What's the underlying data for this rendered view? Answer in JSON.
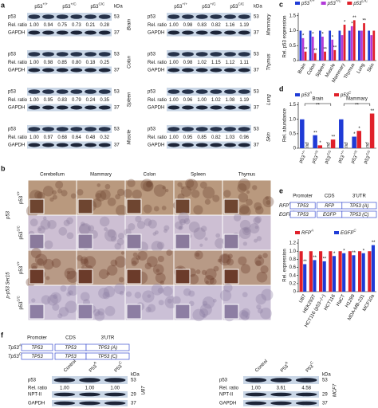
{
  "panel_labels": [
    "a",
    "b",
    "c",
    "d",
    "e",
    "f"
  ],
  "blots_a": {
    "genotypes": [
      {
        "base": "p53",
        "sup": "+/+"
      },
      {
        "base": "p53",
        "sup": "+/C"
      },
      {
        "base": "p53",
        "sup": "C/C"
      }
    ],
    "kda_label": "kDa",
    "row_labels": [
      "p53",
      "Rel. ratio",
      "GAPDH"
    ],
    "kda": [
      53,
      37
    ],
    "groups": [
      {
        "tissue": "Brain",
        "ratios": [
          "1.00",
          "0.94",
          "0.75",
          "0.73",
          "0.21",
          "0.28"
        ]
      },
      {
        "tissue": "Colon",
        "ratios": [
          "1.00",
          "0.98",
          "0.85",
          "0.80",
          "0.18",
          "0.25"
        ]
      },
      {
        "tissue": "Spleen",
        "ratios": [
          "1.00",
          "0.95",
          "0.83",
          "0.79",
          "0.24",
          "0.35"
        ]
      },
      {
        "tissue": "Muscle",
        "ratios": [
          "1.00",
          "0.97",
          "0.68",
          "0.64",
          "0.48",
          "0.32"
        ]
      },
      {
        "tissue": "Mammary",
        "ratios": [
          "1.00",
          "0.98",
          "0.83",
          "0.82",
          "1.16",
          "1.19"
        ]
      },
      {
        "tissue": "Thymus",
        "ratios": [
          "1.00",
          "0.98",
          "1.02",
          "1.15",
          "1.12",
          "1.11"
        ]
      },
      {
        "tissue": "Lung",
        "ratios": [
          "1.00",
          "0.96",
          "1.00",
          "1.02",
          "1.08",
          "1.19"
        ]
      },
      {
        "tissue": "Skin",
        "ratios": [
          "1.00",
          "0.95",
          "0.85",
          "0.82",
          "1.03",
          "0.96"
        ]
      }
    ]
  },
  "ihc": {
    "tissues": [
      "Cerebellum",
      "Mammary",
      "Colon",
      "Spleen",
      "Thymus"
    ],
    "stains": [
      {
        "label": "p53",
        "genotypes": [
          {
            "base": "p53",
            "sup": "+/+"
          },
          {
            "base": "p53",
            "sup": "C/C"
          }
        ]
      },
      {
        "label": "p-p53 Ser15",
        "genotypes": [
          {
            "base": "p53",
            "sup": "+/+"
          },
          {
            "base": "p53",
            "sup": "C/C"
          }
        ]
      }
    ]
  },
  "constructs_e": {
    "headers": [
      "Promoter",
      "CDS",
      "3'UTR"
    ],
    "rows": [
      {
        "name": {
          "base": "RFP",
          "sup": "A"
        },
        "promoter": "TP53",
        "cds": "RFP",
        "utr": "TP53 (A)"
      },
      {
        "name": {
          "base": "EGFP",
          "sup": "C"
        },
        "promoter": "TP53",
        "cds": "EGFP",
        "utr": "TP53 (C)"
      }
    ]
  },
  "constructs_f": {
    "headers": [
      "Promoter",
      "CDS",
      "3'UTR"
    ],
    "rows": [
      {
        "name": {
          "base": "Tp53",
          "sup": "A"
        },
        "promoter": "TP53",
        "cds": "TP53",
        "utr": "TP53 (A)"
      },
      {
        "name": {
          "base": "Tp53",
          "sup": "C"
        },
        "promoter": "TP53",
        "cds": "TP53",
        "utr": "TP53 (C)"
      }
    ]
  },
  "blots_f": {
    "lanes": [
      "Control",
      {
        "base": "P53",
        "sup": "A"
      },
      {
        "base": "P53",
        "sup": "C"
      }
    ],
    "kda_label": "kDa",
    "row_labels": [
      "p53",
      "Rel. ratio",
      "NPT-II",
      "GAPDH"
    ],
    "kda": [
      53,
      29,
      37
    ],
    "cells": [
      {
        "name": "U87",
        "ratios": [
          "1.00",
          "1.00",
          "1.00"
        ]
      },
      {
        "name": "MCF7",
        "ratios": [
          "1.00",
          "3.61",
          "4.58"
        ]
      }
    ]
  },
  "chart_data": [
    {
      "type": "bar",
      "y_label": "Rel. p53 expression",
      "categories": [
        "Brain",
        "Colon",
        "Spleen",
        "Muscle",
        "Mammary",
        "Thymus",
        "Lung",
        "Skin"
      ],
      "ylim": [
        0,
        1.6
      ],
      "yticks": [
        0,
        0.5,
        {
          "value": 1,
          "label": "1.0"
        },
        1.5
      ],
      "series": [
        {
          "name": "p53",
          "name_sup": "+/+",
          "color": "#1f3bd6",
          "values": [
            1,
            1,
            1,
            1,
            1,
            1,
            1,
            1
          ],
          "marks": [
            null,
            null,
            null,
            null,
            null,
            null,
            null,
            null
          ]
        },
        {
          "name": "p53",
          "name_sup": "+/C",
          "color": "#b23ad8",
          "values": [
            0.75,
            0.8,
            0.8,
            0.7,
            0.85,
            1.15,
            1,
            0.85
          ],
          "marks": [
            "*",
            "*",
            "*",
            "*",
            null,
            "*",
            null,
            null
          ]
        },
        {
          "name": "p53",
          "name_sup": "C/C",
          "color": "#e0202a",
          "values": [
            0.3,
            0.25,
            0.3,
            0.35,
            1.2,
            1.35,
            1.25,
            1
          ],
          "marks": [
            "**",
            "**",
            "**",
            "**",
            "*",
            "**",
            "**",
            null
          ]
        }
      ]
    },
    {
      "type": "bar",
      "y_label": "Rel. abundance",
      "categories": [
        {
          "base": "p53",
          "sup": "+/+"
        },
        {
          "base": "p53",
          "sup": "+/C"
        },
        {
          "base": "p53",
          "sup": "C/C"
        },
        {
          "base": "p53",
          "sup": "+/+"
        },
        {
          "base": "p53",
          "sup": "+/C"
        },
        {
          "base": "p53",
          "sup": "C/C"
        }
      ],
      "groups": [
        "Brain",
        "Mammary"
      ],
      "brackets": [
        "**",
        "**"
      ],
      "ylim": [
        0,
        1.6
      ],
      "yticks": [
        0,
        0.5,
        {
          "value": 1,
          "label": "1.0"
        },
        1.5
      ],
      "series": [
        {
          "name": "p53",
          "name_sup": "A",
          "color": "#1f3bd6",
          "values": [
            1,
            0.45,
            null,
            1,
            0.4,
            null
          ],
          "value_labels": [
            null,
            null,
            "nd",
            null,
            null,
            "nd"
          ],
          "marks": [
            null,
            "**",
            null,
            null,
            "*",
            null
          ]
        },
        {
          "name": "p53",
          "name_sup": "C",
          "color": "#e0202a",
          "values": [
            null,
            0.1,
            0.3,
            null,
            0.6,
            1.2
          ],
          "value_labels": [
            "nd",
            null,
            null,
            "nd",
            null,
            null
          ],
          "marks": [
            null,
            "*",
            "**",
            null,
            "*",
            "**"
          ]
        }
      ]
    },
    {
      "type": "bar",
      "y_label": "Rel. expression",
      "categories": [
        "U87",
        "HEK293T",
        "HCT116 (p53−/−)",
        "HCT116",
        "HaCT",
        "H1299",
        "MDA-MB-231",
        "MCF10a"
      ],
      "ylim": [
        0,
        1.3
      ],
      "yticks": [
        0,
        0.2,
        0.4,
        0.6,
        0.8,
        {
          "value": 1,
          "label": "1.0"
        },
        1.2
      ],
      "series": [
        {
          "name": "RFP",
          "name_sup": "A",
          "color": "#e0202a",
          "values": [
            1,
            1,
            1,
            1,
            1,
            1,
            1,
            1
          ],
          "marks": [
            null,
            null,
            null,
            null,
            null,
            null,
            null,
            null
          ]
        },
        {
          "name": "EGFP",
          "name_sup": "C",
          "color": "#1f3bd6",
          "values": [
            0.68,
            0.78,
            0.75,
            0.88,
            0.95,
            0.9,
            0.95,
            1.15
          ],
          "marks": [
            "**",
            "**",
            "**",
            "*",
            "*",
            "**",
            "*",
            "**"
          ]
        }
      ]
    }
  ]
}
